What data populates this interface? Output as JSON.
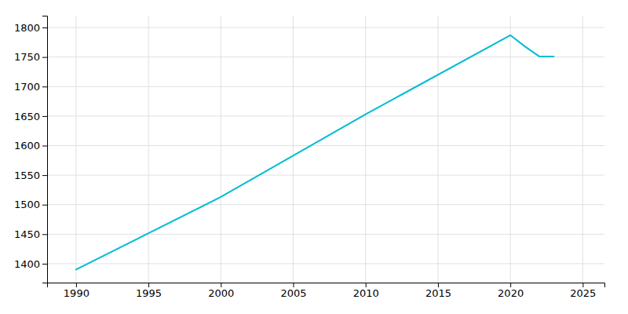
{
  "chart_data": {
    "type": "line",
    "x": [
      1990,
      2000,
      2010,
      2020,
      2021,
      2022,
      2023
    ],
    "values": [
      1390,
      1513,
      1653,
      1787,
      1768,
      1751,
      1751
    ],
    "color": "#00BCD4",
    "xlim": [
      1988,
      2026.5
    ],
    "ylim": [
      1368,
      1820
    ],
    "xticks": [
      1990,
      1995,
      2000,
      2005,
      2010,
      2015,
      2020,
      2025
    ],
    "yticks": [
      1400,
      1450,
      1500,
      1550,
      1600,
      1650,
      1700,
      1750,
      1800
    ],
    "grid": true
  }
}
